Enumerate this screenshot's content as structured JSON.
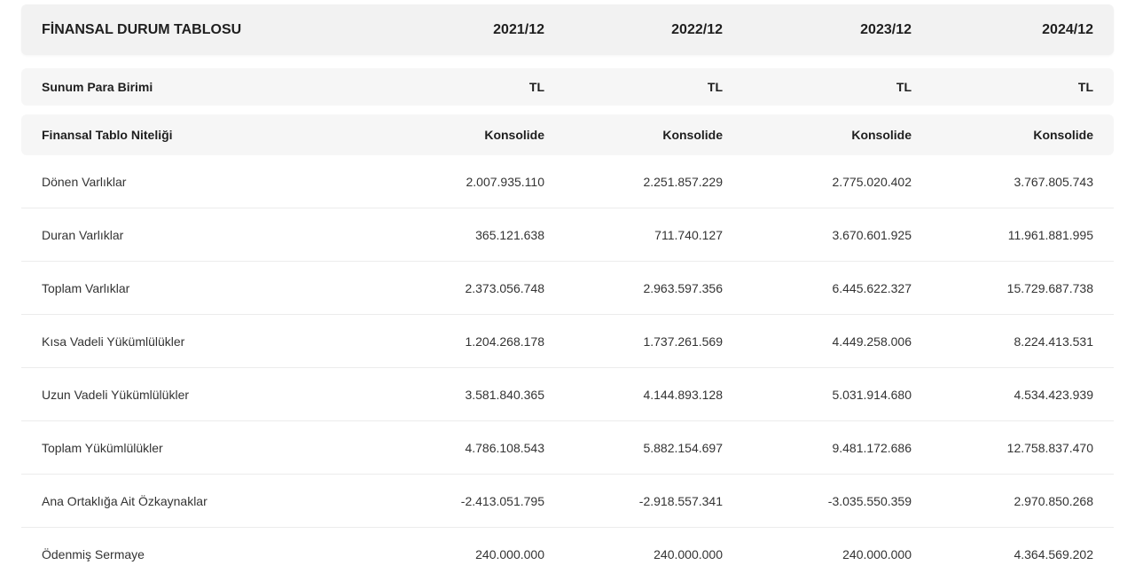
{
  "table": {
    "header": {
      "title": "FİNANSAL DURUM TABLOSU",
      "periods": [
        "2021/12",
        "2022/12",
        "2023/12",
        "2024/12"
      ]
    },
    "meta_rows": [
      {
        "label": "Sunum Para Birimi",
        "values": [
          "TL",
          "TL",
          "TL",
          "TL"
        ]
      },
      {
        "label": "Finansal Tablo Niteliği",
        "values": [
          "Konsolide",
          "Konsolide",
          "Konsolide",
          "Konsolide"
        ]
      }
    ],
    "rows": [
      {
        "label": "Dönen Varlıklar",
        "values": [
          "2.007.935.110",
          "2.251.857.229",
          "2.775.020.402",
          "3.767.805.743"
        ]
      },
      {
        "label": "Duran Varlıklar",
        "values": [
          "365.121.638",
          "711.740.127",
          "3.670.601.925",
          "11.961.881.995"
        ]
      },
      {
        "label": "Toplam Varlıklar",
        "values": [
          "2.373.056.748",
          "2.963.597.356",
          "6.445.622.327",
          "15.729.687.738"
        ]
      },
      {
        "label": "Kısa Vadeli Yükümlülükler",
        "values": [
          "1.204.268.178",
          "1.737.261.569",
          "4.449.258.006",
          "8.224.413.531"
        ]
      },
      {
        "label": "Uzun Vadeli Yükümlülükler",
        "values": [
          "3.581.840.365",
          "4.144.893.128",
          "5.031.914.680",
          "4.534.423.939"
        ]
      },
      {
        "label": "Toplam Yükümlülükler",
        "values": [
          "4.786.108.543",
          "5.882.154.697",
          "9.481.172.686",
          "12.758.837.470"
        ]
      },
      {
        "label": "Ana Ortaklığa Ait Özkaynaklar",
        "values": [
          "-2.413.051.795",
          "-2.918.557.341",
          "-3.035.550.359",
          "2.970.850.268"
        ]
      },
      {
        "label": "Ödenmiş Sermaye",
        "values": [
          "240.000.000",
          "240.000.000",
          "240.000.000",
          "4.364.569.202"
        ]
      }
    ]
  }
}
